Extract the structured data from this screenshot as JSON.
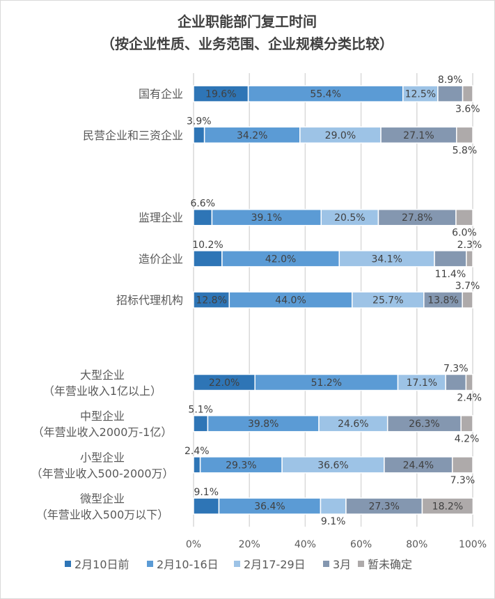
{
  "chart_data": {
    "type": "bar",
    "orientation": "horizontal",
    "stacked": "percent",
    "title": [
      "企业职能部门复工时间",
      "（按企业性质、业务范围、企业规模分类比较）"
    ],
    "categories": [
      [
        "国有企业"
      ],
      [
        "民营企业和三资企业"
      ],
      null,
      [
        "监理企业"
      ],
      [
        "造价企业"
      ],
      [
        "招标代理机构"
      ],
      null,
      [
        "大型企业",
        "（年营业收入1亿以上）"
      ],
      [
        "中型企业",
        "（年营业收入2000万-1亿）"
      ],
      [
        "小型企业",
        "（年营业收入500-2000万）"
      ],
      [
        "微型企业",
        "（年营业收入500万以下）"
      ]
    ],
    "series": [
      {
        "name": "2月10日前",
        "color": "#2e75b6",
        "values": [
          19.6,
          3.9,
          null,
          6.6,
          10.2,
          12.8,
          null,
          22.0,
          5.1,
          2.4,
          9.1
        ]
      },
      {
        "name": "2月10-16日",
        "color": "#5b9bd5",
        "values": [
          55.4,
          34.2,
          null,
          39.1,
          42.0,
          44.0,
          null,
          51.2,
          39.8,
          29.3,
          36.4
        ]
      },
      {
        "name": "2月17-29日",
        "color": "#9dc3e6",
        "values": [
          12.5,
          29.0,
          null,
          20.5,
          34.1,
          25.7,
          null,
          17.1,
          24.6,
          36.6,
          9.1
        ]
      },
      {
        "name": "3月",
        "color": "#8497b0",
        "values": [
          8.9,
          27.1,
          null,
          27.8,
          11.4,
          13.8,
          null,
          7.3,
          26.3,
          24.4,
          27.3
        ]
      },
      {
        "name": "暂未确定",
        "color": "#aeaaaa",
        "values": [
          3.6,
          5.8,
          null,
          6.0,
          2.3,
          3.7,
          null,
          2.4,
          4.2,
          7.3,
          18.2
        ]
      }
    ],
    "xlim": [
      0,
      100
    ],
    "xticks": [
      "0%",
      "20%",
      "40%",
      "60%",
      "80%",
      "100%"
    ],
    "grid": "vertical",
    "legend": "bottom"
  }
}
